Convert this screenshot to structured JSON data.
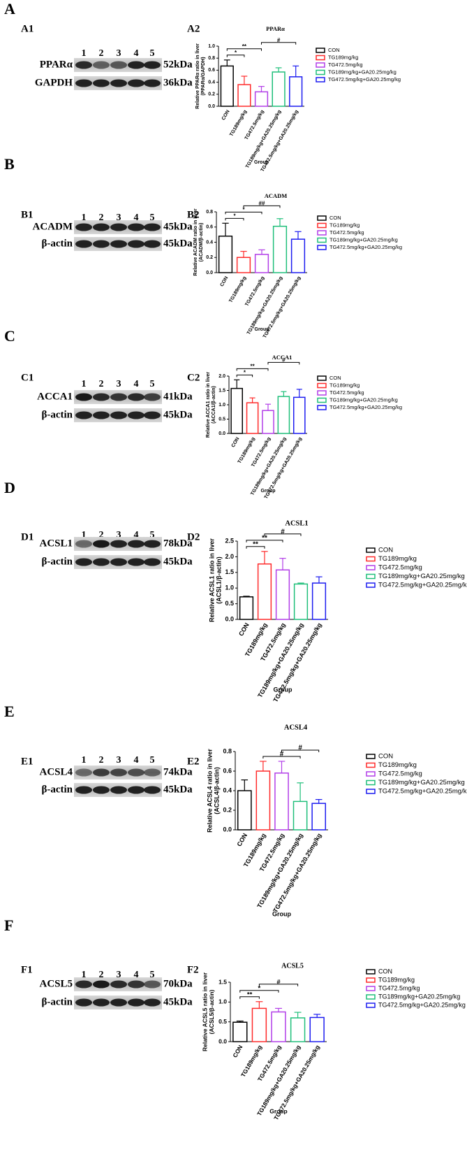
{
  "panels": [
    {
      "letter": "A",
      "blot_label": "A1",
      "chart_label": "A2"
    },
    {
      "letter": "B",
      "blot_label": "B1",
      "chart_label": "B2"
    },
    {
      "letter": "C",
      "blot_label": "C1",
      "chart_label": "C2"
    },
    {
      "letter": "D",
      "blot_label": "D1",
      "chart_label": "D2"
    },
    {
      "letter": "E",
      "blot_label": "E1",
      "chart_label": "E2"
    },
    {
      "letter": "F",
      "blot_label": "F1",
      "chart_label": "F2"
    }
  ],
  "blots": [
    {
      "lanes": [
        "1",
        "2",
        "3",
        "4",
        "5"
      ],
      "rows": [
        {
          "name": "PPARα",
          "size": "52kDa"
        },
        {
          "name": "GAPDH",
          "size": "36kDa"
        }
      ]
    },
    {
      "lanes": [
        "1",
        "2",
        "3",
        "4",
        "5"
      ],
      "rows": [
        {
          "name": "ACADM",
          "size": "45kDa"
        },
        {
          "name": "β-actin",
          "size": "45kDa"
        }
      ]
    },
    {
      "lanes": [
        "1",
        "2",
        "3",
        "4",
        "5"
      ],
      "rows": [
        {
          "name": "ACCA1",
          "size": "41kDa"
        },
        {
          "name": "β-actin",
          "size": "45kDa"
        }
      ]
    },
    {
      "lanes": [
        "1",
        "2",
        "3",
        "4",
        "5"
      ],
      "rows": [
        {
          "name": "ACSL1",
          "size": "78kDa"
        },
        {
          "name": "β-actin",
          "size": "45kDa"
        }
      ]
    },
    {
      "lanes": [
        "1",
        "2",
        "3",
        "4",
        "5"
      ],
      "rows": [
        {
          "name": "ACSL4",
          "size": "74kDa"
        },
        {
          "name": "β-actin",
          "size": "45kDa"
        }
      ]
    },
    {
      "lanes": [
        "1",
        "2",
        "3",
        "4",
        "5"
      ],
      "rows": [
        {
          "name": "ACSL5",
          "size": "70kDa"
        },
        {
          "name": "β-actin",
          "size": "45kDa"
        }
      ]
    }
  ],
  "chart_data": [
    {
      "type": "bar",
      "title": "PPARα",
      "y_label": [
        "Relative PPARα ratio in liver",
        "(PPARα/GAPDH)"
      ],
      "x_label": "Group",
      "categories": [
        "CON",
        "TG189mg/kg",
        "TG472.5mg/kg",
        "TG189mg/kg+GA20.25mg/kg",
        "TG472.5mg/kg+GA20.25mg/kg"
      ],
      "values": [
        0.67,
        0.36,
        0.24,
        0.57,
        0.49
      ],
      "errors": [
        0.1,
        0.14,
        0.09,
        0.07,
        0.18
      ],
      "colors": [
        "#000000",
        "#ff2a2a",
        "#b23ee8",
        "#1fbf7a",
        "#1c1cf0"
      ],
      "ylim": [
        0,
        1
      ],
      "yticks": [
        {
          "value": 0,
          "label": "0.0"
        },
        0.2,
        0.4,
        0.6,
        0.8,
        {
          "value": 1,
          "label": "1.0"
        }
      ],
      "legend": "right",
      "annotations": [
        {
          "text": "*",
          "from": "CON",
          "to": "TG189mg/kg"
        },
        {
          "text": "**",
          "from": "CON",
          "to": "TG472.5mg/kg"
        },
        {
          "text": "#",
          "from": "TG472.5mg/kg",
          "to": "TG472.5mg/kg+GA20.25mg/kg"
        }
      ]
    },
    {
      "type": "bar",
      "title": "ACADM",
      "y_label": [
        "Relative ACADM ratio in liver",
        "(ACADM/β-actin)"
      ],
      "x_label": "Group",
      "categories": [
        "CON",
        "TG189mg/kg",
        "TG472.5mg/kg",
        "TG189mg/kg+GA20.25mg/kg",
        "TG472.5mg/kg+GA20.25mg/kg"
      ],
      "values": [
        0.48,
        0.2,
        0.24,
        0.61,
        0.44
      ],
      "errors": [
        0.17,
        0.08,
        0.06,
        0.1,
        0.1
      ],
      "colors": [
        "#000000",
        "#ff2a2a",
        "#b23ee8",
        "#1fbf7a",
        "#1c1cf0"
      ],
      "ylim": [
        0,
        0.8
      ],
      "yticks": [
        {
          "value": 0,
          "label": "0.0"
        },
        0.2,
        0.4,
        0.6,
        0.8
      ],
      "legend": "right",
      "annotations": [
        {
          "text": "*",
          "from": "CON",
          "to": "TG189mg/kg"
        },
        {
          "text": "*",
          "from": "CON",
          "to": "TG472.5mg/kg"
        },
        {
          "text": "##",
          "from": "TG189mg/kg",
          "to": "TG189mg/kg+GA20.25mg/kg"
        }
      ]
    },
    {
      "type": "bar",
      "title": "ACCA1",
      "y_label": [
        "Relative ACCA1 ratio in liver",
        "(ACCA1/β-actin)"
      ],
      "x_label": "Group",
      "categories": [
        "CON",
        "TG189mg/kg",
        "TG472.5mg/kg",
        "TG189mg/kg+GA20.25mg/kg",
        "TG472.5mg/kg+GA20.25mg/kg"
      ],
      "values": [
        1.57,
        1.07,
        0.8,
        1.29,
        1.26
      ],
      "errors": [
        0.3,
        0.17,
        0.22,
        0.17,
        0.28
      ],
      "colors": [
        "#000000",
        "#ff2a2a",
        "#b23ee8",
        "#1fbf7a",
        "#1c1cf0"
      ],
      "ylim": [
        0,
        2
      ],
      "yticks": [
        {
          "value": 0,
          "label": "0.0"
        },
        0.5,
        {
          "value": 1,
          "label": "1.0"
        },
        1.5,
        {
          "value": 2,
          "label": "2.0"
        }
      ],
      "legend": "right",
      "annotations": [
        {
          "text": "*",
          "from": "CON",
          "to": "TG189mg/kg"
        },
        {
          "text": "**",
          "from": "CON",
          "to": "TG472.5mg/kg"
        },
        {
          "text": "#",
          "from": "TG472.5mg/kg",
          "to": "TG472.5mg/kg+GA20.25mg/kg"
        }
      ]
    },
    {
      "type": "bar",
      "title": "ACSL1",
      "y_label": [
        "Relative ACSL1 ratio in liver",
        "(ACSL1/β-actin)"
      ],
      "x_label": "Group",
      "categories": [
        "CON",
        "TG189mg/kg",
        "TG472.5mg/kg",
        "TG189mg/kg+GA20.25mg/kg",
        "TG472.5mg/kg+GA20.25mg/kg"
      ],
      "values": [
        0.72,
        1.77,
        1.58,
        1.13,
        1.16
      ],
      "errors": [
        0.02,
        0.4,
        0.37,
        0.03,
        0.2
      ],
      "colors": [
        "#000000",
        "#ff2a2a",
        "#b23ee8",
        "#1fbf7a",
        "#1c1cf0"
      ],
      "ylim": [
        0,
        2.5
      ],
      "yticks": [
        {
          "value": 0,
          "label": "0.0"
        },
        0.5,
        {
          "value": 1,
          "label": "1.0"
        },
        1.5,
        {
          "value": 2,
          "label": "2.0"
        },
        2.5
      ],
      "legend": "right",
      "annotations": [
        {
          "text": "**",
          "from": "CON",
          "to": "TG189mg/kg"
        },
        {
          "text": "**",
          "from": "CON",
          "to": "TG472.5mg/kg"
        },
        {
          "text": "#",
          "from": "TG189mg/kg",
          "to": "TG189mg/kg+GA20.25mg/kg"
        }
      ]
    },
    {
      "type": "bar",
      "title": "ACSL4",
      "y_label": [
        "Relative ACSL4 ratio in liver",
        "(ACSL4/β-actin)"
      ],
      "x_label": "Group",
      "categories": [
        "CON",
        "TG189mg/kg",
        "TG472.5mg/kg",
        "TG189mg/kg+GA20.25mg/kg",
        "TG472.5mg/kg+GA20.25mg/kg"
      ],
      "values": [
        0.4,
        0.6,
        0.58,
        0.29,
        0.27
      ],
      "errors": [
        0.11,
        0.1,
        0.12,
        0.19,
        0.04
      ],
      "colors": [
        "#000000",
        "#ff2a2a",
        "#b23ee8",
        "#1fbf7a",
        "#1c1cf0"
      ],
      "ylim": [
        0,
        0.8
      ],
      "yticks": [
        {
          "value": 0,
          "label": "0.0"
        },
        0.2,
        0.4,
        0.6,
        0.8
      ],
      "legend": "right",
      "annotations": [
        {
          "text": "#",
          "from": "TG189mg/kg",
          "to": "TG189mg/kg+GA20.25mg/kg"
        },
        {
          "text": "#",
          "from": "TG472.5mg/kg",
          "to": "TG472.5mg/kg+GA20.25mg/kg"
        }
      ]
    },
    {
      "type": "bar",
      "title": "ACSL5",
      "y_label": [
        "Relative ACSL5 ratio in liver",
        "(ACSL5/β-actin)"
      ],
      "x_label": "Group",
      "categories": [
        "CON",
        "TG189mg/kg",
        "TG472.5mg/kg",
        "TG189mg/kg+GA20.25mg/kg",
        "TG472.5mg/kg+GA20.25mg/kg"
      ],
      "values": [
        0.49,
        0.84,
        0.75,
        0.6,
        0.61
      ],
      "errors": [
        0.03,
        0.17,
        0.09,
        0.14,
        0.08
      ],
      "colors": [
        "#000000",
        "#ff2a2a",
        "#b23ee8",
        "#1fbf7a",
        "#1c1cf0"
      ],
      "ylim": [
        0,
        1.5
      ],
      "yticks": [
        {
          "value": 0,
          "label": "0.0"
        },
        0.5,
        {
          "value": 1,
          "label": "1.0"
        },
        1.5
      ],
      "legend": "right",
      "annotations": [
        {
          "text": "**",
          "from": "CON",
          "to": "TG189mg/kg"
        },
        {
          "text": "*",
          "from": "CON",
          "to": "TG472.5mg/kg"
        },
        {
          "text": "#",
          "from": "TG189mg/kg",
          "to": "TG189mg/kg+GA20.25mg/kg"
        }
      ]
    }
  ]
}
